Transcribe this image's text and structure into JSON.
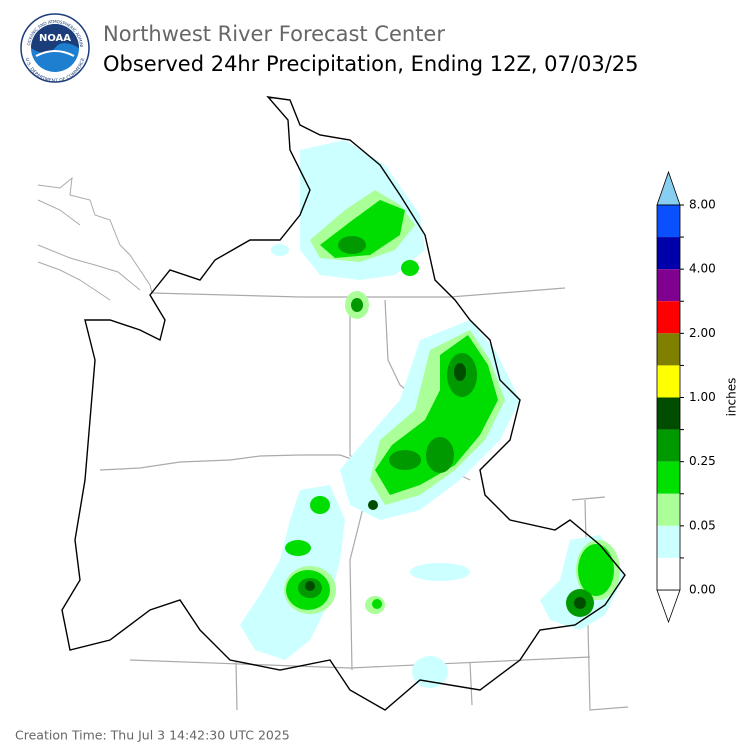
{
  "header": {
    "title": "Northwest River Forecast Center",
    "subtitle": "Observed 24hr Precipitation, Ending 12Z, 07/03/25"
  },
  "logo": {
    "text": "NOAA",
    "ring_top": "NATIONAL OCEANIC AND ATMOSPHERIC ADMINISTRATION",
    "ring_bottom": "U.S. DEPARTMENT OF COMMERCE"
  },
  "legend": {
    "label": "inches",
    "ticks": [
      "8.00",
      "4.00",
      "2.00",
      "1.00",
      "0.25",
      "0.05",
      "0.00"
    ]
  },
  "footer": {
    "creation_time": "Creation Time: Thu Jul 3 14:42:30 UTC 2025"
  }
}
